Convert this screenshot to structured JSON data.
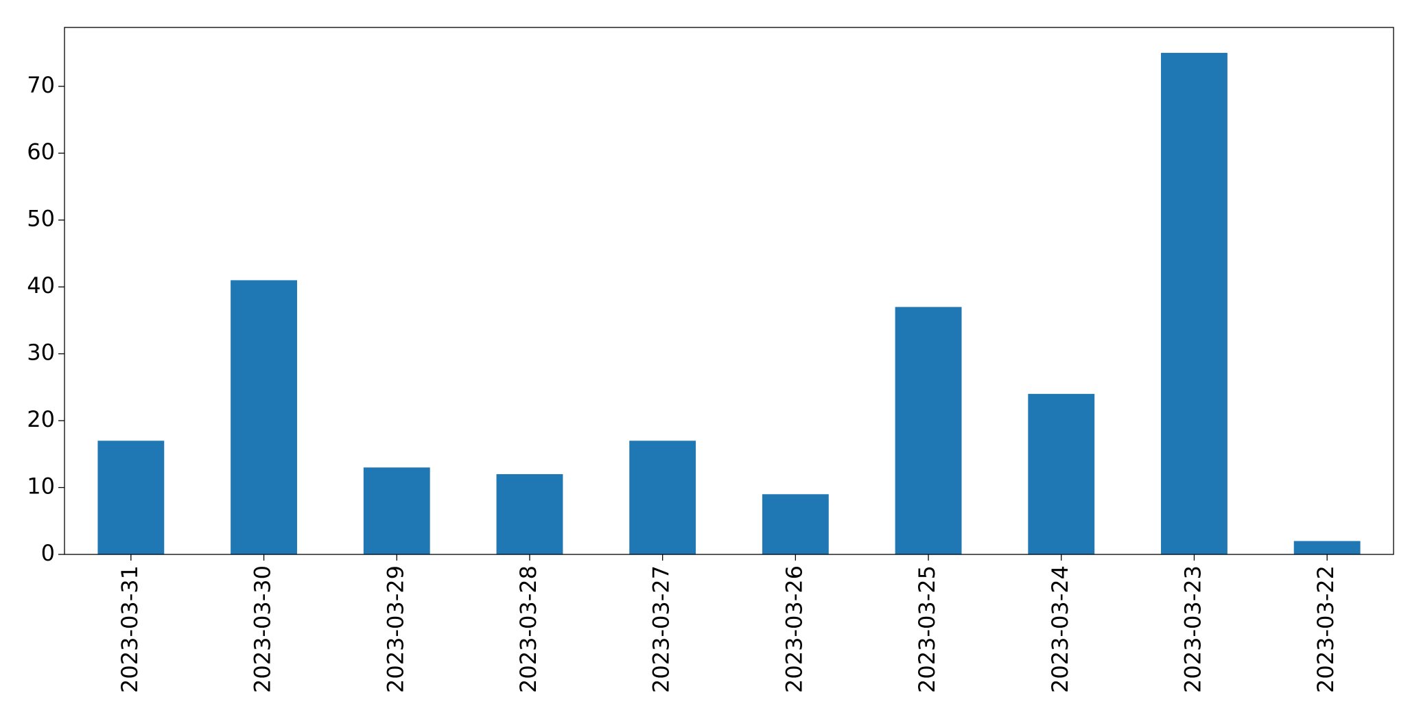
{
  "chart_data": {
    "type": "bar",
    "categories": [
      "2023-03-31",
      "2023-03-30",
      "2023-03-29",
      "2023-03-28",
      "2023-03-27",
      "2023-03-26",
      "2023-03-25",
      "2023-03-24",
      "2023-03-23",
      "2023-03-22"
    ],
    "values": [
      17,
      41,
      13,
      12,
      17,
      9,
      37,
      24,
      75,
      2
    ],
    "color": "#1f77b4",
    "ylim": [
      0,
      78.8
    ],
    "yticks": [
      0,
      10,
      20,
      30,
      40,
      50,
      60,
      70
    ],
    "grid": false
  }
}
